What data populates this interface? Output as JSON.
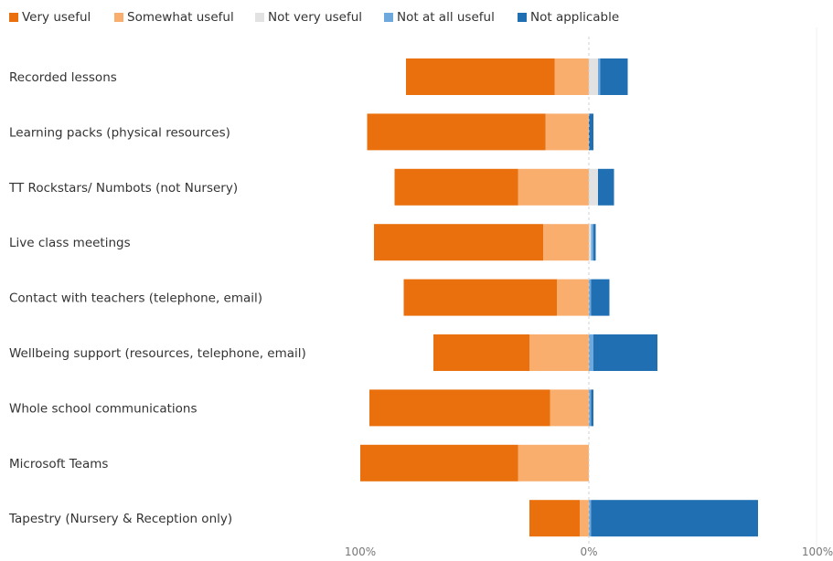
{
  "chart_data": {
    "type": "bar",
    "orientation": "horizontal",
    "stacking": "diverging",
    "title": "",
    "xlabel": "",
    "ylabel": "",
    "categories": [
      "Recorded lessons",
      "Learning packs (physical resources)",
      "TT Rockstars/ Numbots (not Nursery)",
      "Live class meetings",
      "Contact with teachers (telephone, email)",
      "Wellbeing support (resources, telephone, email)",
      "Whole school communications",
      "Microsoft Teams",
      "Tapestry (Nursery & Reception only)"
    ],
    "series": [
      {
        "name": "Very useful",
        "color": "#EA700E",
        "side": "negative",
        "values": [
          65,
          78,
          54,
          74,
          67,
          42,
          79,
          69,
          22
        ]
      },
      {
        "name": "Somewhat useful",
        "color": "#F9AE6E",
        "side": "negative",
        "values": [
          15,
          19,
          31,
          20,
          14,
          26,
          17,
          31,
          4
        ]
      },
      {
        "name": "Not very useful",
        "color": "#E2E2E2",
        "side": "positive",
        "values": [
          4,
          0,
          4,
          1,
          0,
          0,
          0,
          0,
          0
        ]
      },
      {
        "name": "Not at all useful",
        "color": "#6FA8DC",
        "side": "positive",
        "values": [
          1,
          0,
          0,
          1,
          1,
          2,
          1,
          0,
          1
        ]
      },
      {
        "name": "Not applicable",
        "color": "#1F6FB2",
        "side": "positive",
        "values": [
          12,
          2,
          7,
          1,
          8,
          28,
          1,
          0,
          73
        ]
      }
    ],
    "xlim": [
      -100,
      100
    ],
    "ticks": [
      "100%",
      "0%",
      "100%"
    ],
    "legend_position": "top-left",
    "grid": false,
    "zero_line": "dashed"
  }
}
